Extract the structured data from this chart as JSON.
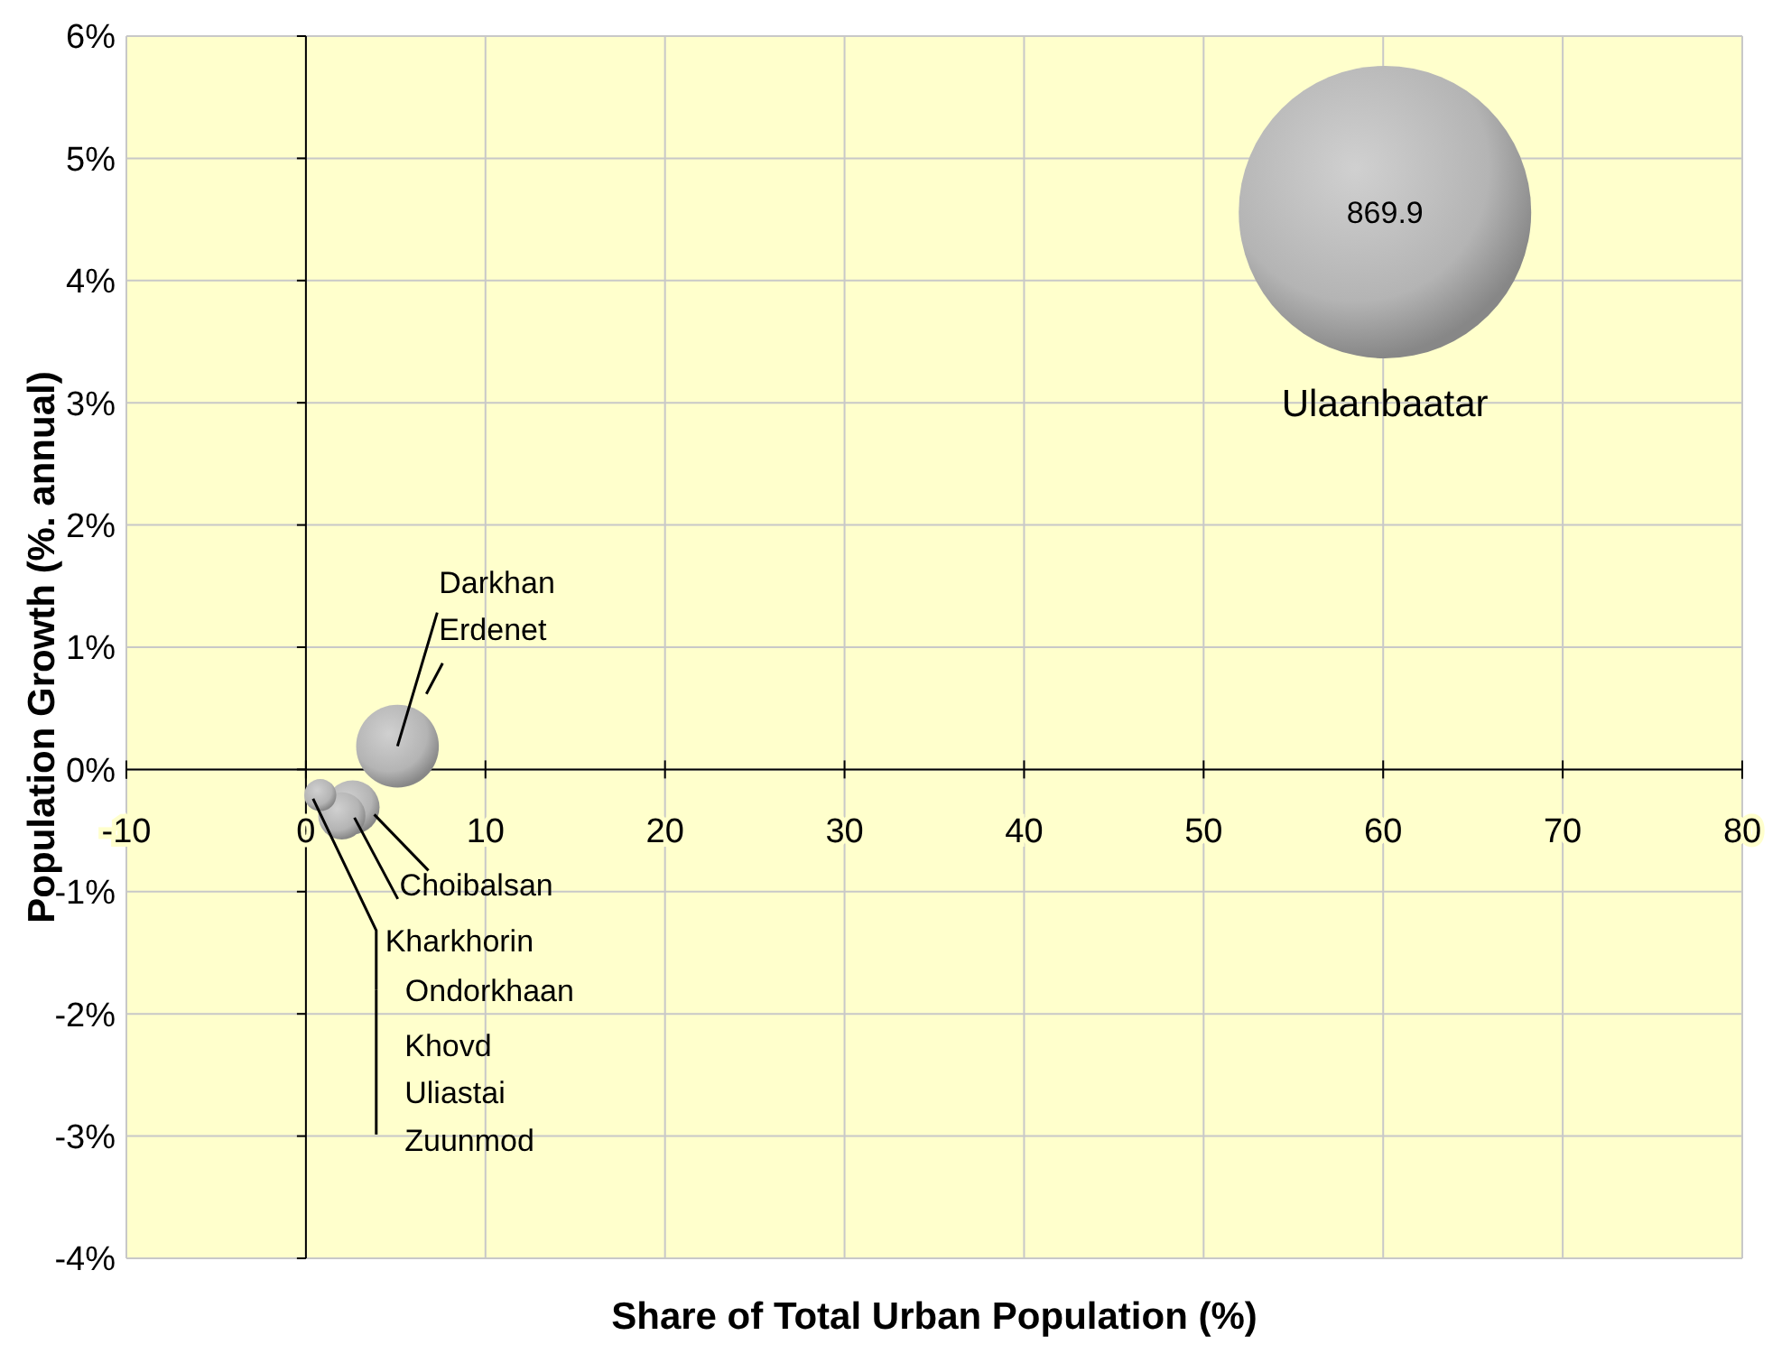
{
  "chart_data": {
    "type": "bubble",
    "xlabel": "Share of Total Urban Population (%)",
    "ylabel": "Population Growth (%. annual)",
    "xlim": [
      -10,
      80
    ],
    "xticks": [
      -10,
      0,
      10,
      20,
      30,
      40,
      50,
      60,
      70,
      80
    ],
    "ylim": [
      -4,
      6
    ],
    "yticks": [
      {
        "value": -4,
        "label": "-4%"
      },
      {
        "value": -3,
        "label": "-3%"
      },
      {
        "value": -2,
        "label": "-2%"
      },
      {
        "value": -1,
        "label": "-1%"
      },
      {
        "value": 0,
        "label": "0%"
      },
      {
        "value": 1,
        "label": "1%"
      },
      {
        "value": 2,
        "label": "2%"
      },
      {
        "value": 3,
        "label": "3%"
      },
      {
        "value": 4,
        "label": "4%"
      },
      {
        "value": 5,
        "label": "5%"
      },
      {
        "value": 6,
        "label": "6%"
      }
    ],
    "grid": true,
    "ref_lines": [
      {
        "axis": "x",
        "value": 0,
        "color": "#000000"
      }
    ],
    "series": [
      {
        "color": "#b4b4b4",
        "x": [
          60.1,
          5.1,
          2.6,
          2.0,
          0.8
        ],
        "values": [
          4.56,
          0.19,
          -0.31,
          -0.38,
          -0.21
        ],
        "sizes": [
          1,
          0.08,
          0.034,
          0.026,
          0.012
        ]
      }
    ],
    "annotations": [
      {
        "text": "869.9",
        "x": 60.1,
        "y": 4.56
      },
      "Ulaanbaatar",
      {
        "text": "Darkhan",
        "x": 5.1,
        "y": 0.19
      },
      {
        "text": "Erdenet",
        "x": 5.1,
        "y": 0.19
      },
      {
        "text": "Choibalsan",
        "x": 2.6,
        "y": -0.31
      },
      {
        "text": "Kharkhorin",
        "x": 2.0,
        "y": -0.38
      },
      {
        "text": "Ondorkhaan",
        "x": 0.8,
        "y": -0.21
      },
      "Khovd",
      "Uliastai",
      "Zuunmod"
    ]
  }
}
